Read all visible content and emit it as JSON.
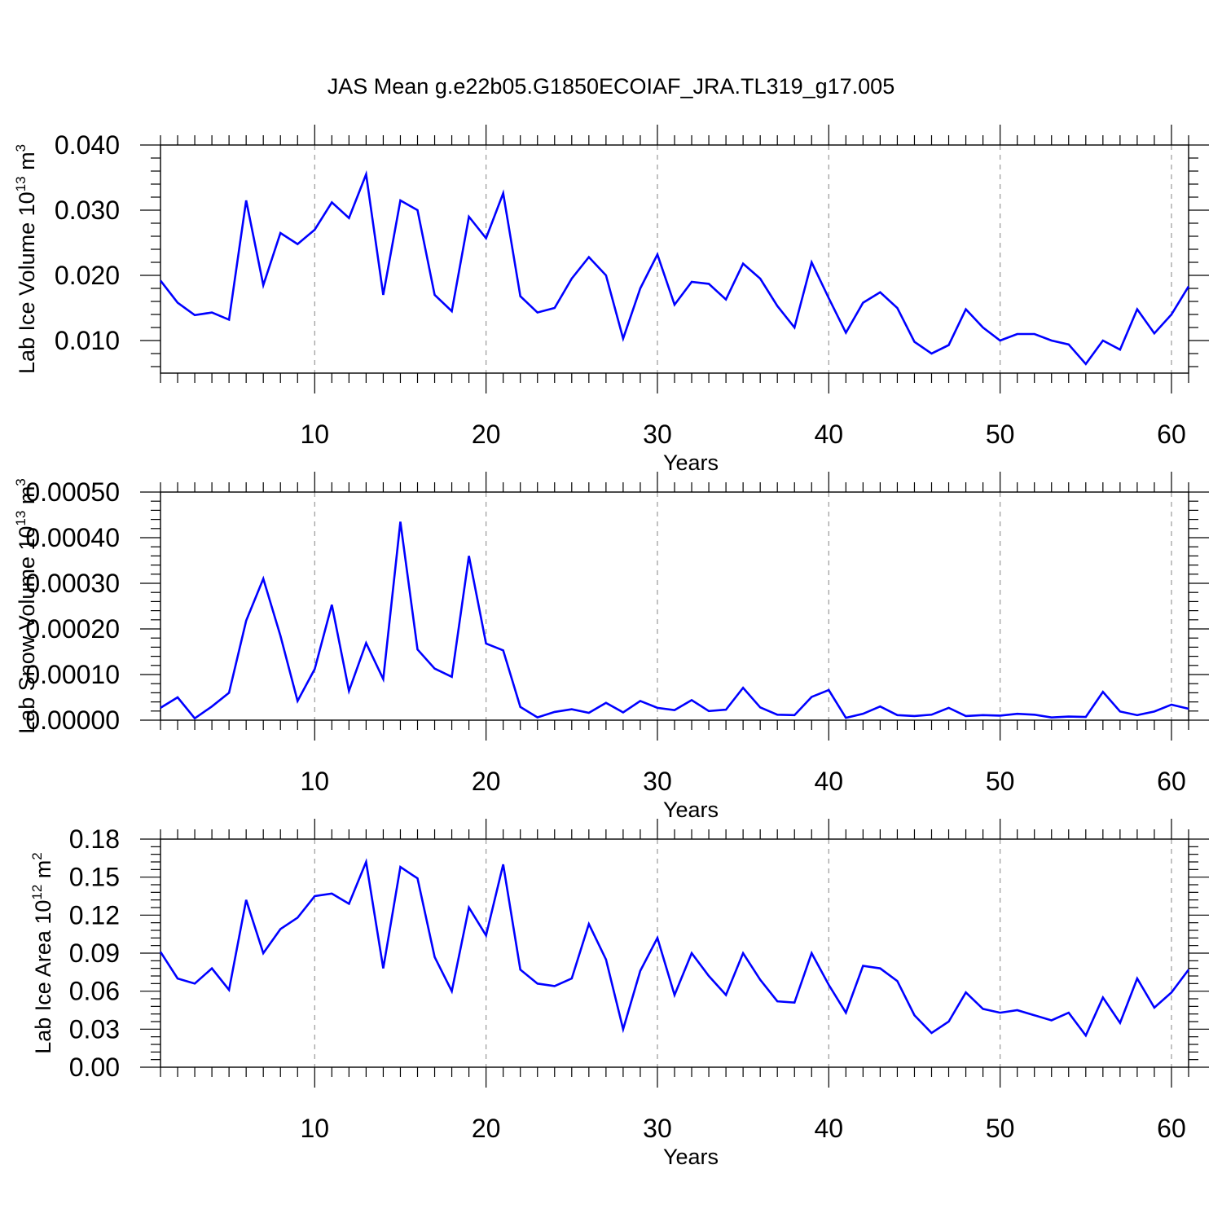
{
  "title": "JAS Mean g.e22b05.G1850ECOIAF_JRA.TL319_g17.005",
  "line_color": "#0000ff",
  "chart_data": [
    {
      "type": "line",
      "ylabel": "Lab Ice Volume 10",
      "ylabel_sup1": "13",
      "ylabel_mid": " m",
      "ylabel_sup2": "3",
      "xlabel": "Years",
      "xlim": [
        1,
        61
      ],
      "ylim": [
        0.005,
        0.04
      ],
      "yticks": [
        0.01,
        0.02,
        0.03,
        0.04
      ],
      "ytick_labels": [
        "0.010",
        "0.020",
        "0.030",
        "0.040"
      ],
      "xticks": [
        10,
        20,
        30,
        40,
        50,
        60
      ],
      "xtick_labels": [
        "10",
        "20",
        "30",
        "40",
        "50",
        "60"
      ],
      "x": [
        1,
        2,
        3,
        4,
        5,
        6,
        7,
        8,
        9,
        10,
        11,
        12,
        13,
        14,
        15,
        16,
        17,
        18,
        19,
        20,
        21,
        22,
        23,
        24,
        25,
        26,
        27,
        28,
        29,
        30,
        31,
        32,
        33,
        34,
        35,
        36,
        37,
        38,
        39,
        40,
        41,
        42,
        43,
        44,
        45,
        46,
        47,
        48,
        49,
        50,
        51,
        52,
        53,
        54,
        55,
        56,
        57,
        58,
        59,
        60,
        61
      ],
      "series": [
        {
          "values": [
            0.0192,
            0.0158,
            0.0139,
            0.0143,
            0.0132,
            0.0315,
            0.0185,
            0.0265,
            0.0248,
            0.027,
            0.0312,
            0.0288,
            0.0355,
            0.017,
            0.0315,
            0.03,
            0.017,
            0.0145,
            0.029,
            0.0257,
            0.0326,
            0.0168,
            0.0143,
            0.015,
            0.0195,
            0.0228,
            0.02,
            0.0103,
            0.018,
            0.0232,
            0.0155,
            0.019,
            0.0187,
            0.0163,
            0.0218,
            0.0195,
            0.0153,
            0.012,
            0.022,
            0.0165,
            0.0112,
            0.0158,
            0.0174,
            0.015,
            0.0098,
            0.008,
            0.0093,
            0.0148,
            0.012,
            0.01,
            0.011,
            0.011,
            0.01,
            0.0094,
            0.0064,
            0.01,
            0.0086,
            0.0148,
            0.0111,
            0.014,
            0.0183
          ]
        }
      ]
    },
    {
      "type": "line",
      "ylabel": "Lab Snow Volume 10",
      "ylabel_sup1": "13",
      "ylabel_mid": " m",
      "ylabel_sup2": "3",
      "xlabel": "Years",
      "xlim": [
        1,
        61
      ],
      "ylim": [
        0.0,
        0.0005
      ],
      "yticks": [
        0.0,
        0.0001,
        0.0002,
        0.0003,
        0.0004,
        0.0005
      ],
      "ytick_labels": [
        "0.00000",
        "0.00010",
        "0.00020",
        "0.00030",
        "0.00040",
        "0.00050"
      ],
      "xticks": [
        10,
        20,
        30,
        40,
        50,
        60
      ],
      "xtick_labels": [
        "10",
        "20",
        "30",
        "40",
        "50",
        "60"
      ],
      "x": [
        1,
        2,
        3,
        4,
        5,
        6,
        7,
        8,
        9,
        10,
        11,
        12,
        13,
        14,
        15,
        16,
        17,
        18,
        19,
        20,
        21,
        22,
        23,
        24,
        25,
        26,
        27,
        28,
        29,
        30,
        31,
        32,
        33,
        34,
        35,
        36,
        37,
        38,
        39,
        40,
        41,
        42,
        43,
        44,
        45,
        46,
        47,
        48,
        49,
        50,
        51,
        52,
        53,
        54,
        55,
        56,
        57,
        58,
        59,
        60,
        61
      ],
      "series": [
        {
          "values": [
            2.7e-05,
            5e-05,
            4e-06,
            3e-05,
            6e-05,
            0.000218,
            0.00031,
            0.000185,
            4.2e-05,
            0.000112,
            0.000253,
            6.4e-05,
            0.000169,
            9e-05,
            0.000435,
            0.000155,
            0.000113,
            9.5e-05,
            0.00036,
            0.000168,
            0.000153,
            2.9e-05,
            6e-06,
            1.8e-05,
            2.4e-05,
            1.6e-05,
            3.8e-05,
            1.7e-05,
            4.2e-05,
            2.7e-05,
            2.2e-05,
            4.4e-05,
            2e-05,
            2.3e-05,
            7.1e-05,
            2.8e-05,
            1.2e-05,
            1.1e-05,
            5.1e-05,
            6.6e-05,
            5e-06,
            1.4e-05,
            3e-05,
            1.1e-05,
            9e-06,
            1.2e-05,
            2.7e-05,
            9e-06,
            1.1e-05,
            1e-05,
            1.4e-05,
            1.2e-05,
            6e-06,
            8e-06,
            7e-06,
            6.2e-05,
            1.9e-05,
            1.1e-05,
            1.9e-05,
            3.4e-05,
            2.5e-05
          ]
        }
      ]
    },
    {
      "type": "line",
      "ylabel": "Lab Ice Area 10",
      "ylabel_sup1": "12",
      "ylabel_mid": " m",
      "ylabel_sup2": "2",
      "xlabel": "Years",
      "xlim": [
        1,
        61
      ],
      "ylim": [
        0.0,
        0.18
      ],
      "yticks": [
        0.0,
        0.03,
        0.06,
        0.09,
        0.12,
        0.15,
        0.18
      ],
      "ytick_labels": [
        "0.00",
        "0.03",
        "0.06",
        "0.09",
        "0.12",
        "0.15",
        "0.18"
      ],
      "xticks": [
        10,
        20,
        30,
        40,
        50,
        60
      ],
      "xtick_labels": [
        "10",
        "20",
        "30",
        "40",
        "50",
        "60"
      ],
      "x": [
        1,
        2,
        3,
        4,
        5,
        6,
        7,
        8,
        9,
        10,
        11,
        12,
        13,
        14,
        15,
        16,
        17,
        18,
        19,
        20,
        21,
        22,
        23,
        24,
        25,
        26,
        27,
        28,
        29,
        30,
        31,
        32,
        33,
        34,
        35,
        36,
        37,
        38,
        39,
        40,
        41,
        42,
        43,
        44,
        45,
        46,
        47,
        48,
        49,
        50,
        51,
        52,
        53,
        54,
        55,
        56,
        57,
        58,
        59,
        60,
        61
      ],
      "series": [
        {
          "values": [
            0.091,
            0.07,
            0.066,
            0.078,
            0.061,
            0.132,
            0.09,
            0.109,
            0.118,
            0.135,
            0.137,
            0.129,
            0.162,
            0.078,
            0.158,
            0.149,
            0.087,
            0.06,
            0.126,
            0.104,
            0.16,
            0.077,
            0.066,
            0.064,
            0.07,
            0.113,
            0.085,
            0.03,
            0.076,
            0.102,
            0.057,
            0.09,
            0.072,
            0.057,
            0.09,
            0.069,
            0.052,
            0.051,
            0.09,
            0.065,
            0.043,
            0.08,
            0.078,
            0.068,
            0.041,
            0.027,
            0.036,
            0.059,
            0.046,
            0.043,
            0.045,
            0.041,
            0.037,
            0.043,
            0.025,
            0.055,
            0.035,
            0.07,
            0.047,
            0.059,
            0.077
          ]
        }
      ]
    }
  ]
}
